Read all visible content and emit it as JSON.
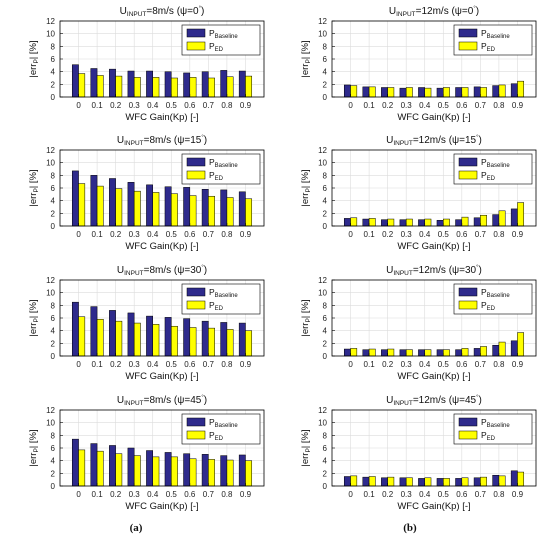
{
  "figure": {
    "caption_a": "(a)",
    "caption_b": "(b)"
  },
  "chart_data": [
    {
      "type": "bar",
      "title": {
        "prefix": "U",
        "sub": "INPUT",
        "mid": "=8m/s (ψ=0",
        "sup": "°",
        "suffix": ")"
      },
      "xlabel": "WFC Gain(Kp) [-]",
      "ylabel": {
        "main": "|err",
        "sub": "P",
        "end": "| [%]"
      },
      "categories": [
        "0",
        "0.1",
        "0.2",
        "0.3",
        "0.4",
        "0.5",
        "0.6",
        "0.7",
        "0.8",
        "0.9"
      ],
      "ylim": [
        0,
        12
      ],
      "yticks": [
        "0",
        "2",
        "4",
        "6",
        "8",
        "10",
        "12"
      ],
      "grid": true,
      "legend_position": "top-right",
      "series": [
        {
          "name": {
            "main": "P",
            "sub": "Baseline"
          },
          "color": "#2e2a8c",
          "values": [
            5.1,
            4.5,
            4.4,
            4.1,
            4.1,
            4.0,
            3.8,
            4.0,
            4.2,
            4.1
          ]
        },
        {
          "name": {
            "main": "P",
            "sub": "ED"
          },
          "color": "#ffff00",
          "values": [
            3.7,
            3.4,
            3.3,
            3.1,
            3.1,
            3.0,
            3.1,
            3.0,
            3.2,
            3.3
          ]
        }
      ]
    },
    {
      "type": "bar",
      "title": {
        "prefix": "U",
        "sub": "INPUT",
        "mid": "=12m/s (ψ=0",
        "sup": "°",
        "suffix": ")"
      },
      "xlabel": "WFC Gain(Kp) [-]",
      "ylabel": {
        "main": "|err",
        "sub": "P",
        "end": "| [%]"
      },
      "categories": [
        "0",
        "0.1",
        "0.2",
        "0.3",
        "0.4",
        "0.5",
        "0.6",
        "0.7",
        "0.8",
        "0.9"
      ],
      "ylim": [
        0,
        12
      ],
      "yticks": [
        "0",
        "2",
        "4",
        "6",
        "8",
        "10",
        "12"
      ],
      "grid": true,
      "legend_position": "top-right",
      "series": [
        {
          "name": {
            "main": "P",
            "sub": "Baseline"
          },
          "color": "#2e2a8c",
          "values": [
            1.9,
            1.6,
            1.5,
            1.4,
            1.5,
            1.4,
            1.5,
            1.6,
            1.8,
            2.1
          ]
        },
        {
          "name": {
            "main": "P",
            "sub": "ED"
          },
          "color": "#ffff00",
          "values": [
            1.8,
            1.6,
            1.5,
            1.5,
            1.4,
            1.5,
            1.5,
            1.5,
            1.9,
            2.5
          ]
        }
      ]
    },
    {
      "type": "bar",
      "title": {
        "prefix": "U",
        "sub": "INPUT",
        "mid": "=8m/s (ψ=15",
        "sup": "°",
        "suffix": ")"
      },
      "xlabel": "WFC Gain(Kp) [-]",
      "ylabel": {
        "main": "|err",
        "sub": "P",
        "end": "| [%]"
      },
      "categories": [
        "0",
        "0.1",
        "0.2",
        "0.3",
        "0.4",
        "0.5",
        "0.6",
        "0.7",
        "0.8",
        "0.9"
      ],
      "ylim": [
        0,
        12
      ],
      "yticks": [
        "0",
        "2",
        "4",
        "6",
        "8",
        "10",
        "12"
      ],
      "grid": true,
      "legend_position": "top-right",
      "series": [
        {
          "name": {
            "main": "P",
            "sub": "Baseline"
          },
          "color": "#2e2a8c",
          "values": [
            8.7,
            8.0,
            7.5,
            6.9,
            6.5,
            6.2,
            6.1,
            5.8,
            5.7,
            5.4
          ]
        },
        {
          "name": {
            "main": "P",
            "sub": "ED"
          },
          "color": "#ffff00",
          "values": [
            6.7,
            6.3,
            5.9,
            5.5,
            5.3,
            5.1,
            4.8,
            4.7,
            4.5,
            4.3
          ]
        }
      ]
    },
    {
      "type": "bar",
      "title": {
        "prefix": "U",
        "sub": "INPUT",
        "mid": "=12m/s (ψ=15",
        "sup": "°",
        "suffix": ")"
      },
      "xlabel": "WFC Gain(Kp) [-]",
      "ylabel": {
        "main": "|err",
        "sub": "P",
        "end": "| [%]"
      },
      "categories": [
        "0",
        "0.1",
        "0.2",
        "0.3",
        "0.4",
        "0.5",
        "0.6",
        "0.7",
        "0.8",
        "0.9"
      ],
      "ylim": [
        0,
        12
      ],
      "yticks": [
        "0",
        "2",
        "4",
        "6",
        "8",
        "10",
        "12"
      ],
      "grid": true,
      "legend_position": "top-right",
      "series": [
        {
          "name": {
            "main": "P",
            "sub": "Baseline"
          },
          "color": "#2e2a8c",
          "values": [
            1.2,
            1.1,
            1.0,
            1.0,
            1.0,
            0.9,
            1.0,
            1.3,
            1.8,
            2.7
          ]
        },
        {
          "name": {
            "main": "P",
            "sub": "ED"
          },
          "color": "#ffff00",
          "values": [
            1.3,
            1.2,
            1.1,
            1.1,
            1.1,
            1.1,
            1.4,
            1.7,
            2.4,
            3.7
          ]
        }
      ]
    },
    {
      "type": "bar",
      "title": {
        "prefix": "U",
        "sub": "INPUT",
        "mid": "=8m/s (ψ=30",
        "sup": "°",
        "suffix": ")"
      },
      "xlabel": "WFC Gain(Kp) [-]",
      "ylabel": {
        "main": "|err",
        "sub": "P",
        "end": "| [%]"
      },
      "categories": [
        "0",
        "0.1",
        "0.2",
        "0.3",
        "0.4",
        "0.5",
        "0.6",
        "0.7",
        "0.8",
        "0.9"
      ],
      "ylim": [
        0,
        12
      ],
      "yticks": [
        "0",
        "2",
        "4",
        "6",
        "8",
        "10",
        "12"
      ],
      "grid": true,
      "legend_position": "top-right",
      "series": [
        {
          "name": {
            "main": "P",
            "sub": "Baseline"
          },
          "color": "#2e2a8c",
          "values": [
            8.5,
            7.8,
            7.2,
            6.8,
            6.3,
            6.1,
            5.9,
            5.5,
            5.3,
            5.2
          ]
        },
        {
          "name": {
            "main": "P",
            "sub": "ED"
          },
          "color": "#ffff00",
          "values": [
            6.2,
            5.8,
            5.5,
            5.2,
            5.0,
            4.7,
            4.5,
            4.4,
            4.2,
            4.0
          ]
        }
      ]
    },
    {
      "type": "bar",
      "title": {
        "prefix": "U",
        "sub": "INPUT",
        "mid": "=12m/s (ψ=30",
        "sup": "°",
        "suffix": ")"
      },
      "xlabel": "WFC Gain(Kp) [-]",
      "ylabel": {
        "main": "|err",
        "sub": "P",
        "end": "| [%]"
      },
      "categories": [
        "0",
        "0.1",
        "0.2",
        "0.3",
        "0.4",
        "0.5",
        "0.6",
        "0.7",
        "0.8",
        "0.9"
      ],
      "ylim": [
        0,
        12
      ],
      "yticks": [
        "0",
        "2",
        "4",
        "6",
        "8",
        "10",
        "12"
      ],
      "grid": true,
      "legend_position": "top-right",
      "series": [
        {
          "name": {
            "main": "P",
            "sub": "Baseline"
          },
          "color": "#2e2a8c",
          "values": [
            1.1,
            1.0,
            1.0,
            1.0,
            1.0,
            1.0,
            1.0,
            1.2,
            1.7,
            2.4
          ]
        },
        {
          "name": {
            "main": "P",
            "sub": "ED"
          },
          "color": "#ffff00",
          "values": [
            1.2,
            1.1,
            1.1,
            1.0,
            1.0,
            1.0,
            1.2,
            1.5,
            2.2,
            3.7
          ]
        }
      ]
    },
    {
      "type": "bar",
      "title": {
        "prefix": "U",
        "sub": "INPUT",
        "mid": "=8m/s (ψ=45",
        "sup": "°",
        "suffix": ")"
      },
      "xlabel": "WFC Gain(Kp) [-]",
      "ylabel": {
        "main": "|err",
        "sub": "P",
        "end": "| [%]"
      },
      "categories": [
        "0",
        "0.1",
        "0.2",
        "0.3",
        "0.4",
        "0.5",
        "0.6",
        "0.7",
        "0.8",
        "0.9"
      ],
      "ylim": [
        0,
        12
      ],
      "yticks": [
        "0",
        "2",
        "4",
        "6",
        "8",
        "10",
        "12"
      ],
      "grid": true,
      "legend_position": "top-right",
      "series": [
        {
          "name": {
            "main": "P",
            "sub": "Baseline"
          },
          "color": "#2e2a8c",
          "values": [
            7.4,
            6.7,
            6.4,
            6.0,
            5.6,
            5.3,
            5.1,
            5.0,
            4.8,
            4.9
          ]
        },
        {
          "name": {
            "main": "P",
            "sub": "ED"
          },
          "color": "#ffff00",
          "values": [
            5.7,
            5.5,
            5.1,
            4.8,
            4.6,
            4.6,
            4.3,
            4.2,
            4.1,
            4.0
          ]
        }
      ]
    },
    {
      "type": "bar",
      "title": {
        "prefix": "U",
        "sub": "INPUT",
        "mid": "=12m/s (ψ=45",
        "sup": "°",
        "suffix": ")"
      },
      "xlabel": "WFC Gain(Kp) [-]",
      "ylabel": {
        "main": "|err",
        "sub": "P",
        "end": "| [%]"
      },
      "categories": [
        "0",
        "0.1",
        "0.2",
        "0.3",
        "0.4",
        "0.5",
        "0.6",
        "0.7",
        "0.8",
        "0.9"
      ],
      "ylim": [
        0,
        12
      ],
      "yticks": [
        "0",
        "2",
        "4",
        "6",
        "8",
        "10",
        "12"
      ],
      "grid": true,
      "legend_position": "top-right",
      "series": [
        {
          "name": {
            "main": "P",
            "sub": "Baseline"
          },
          "color": "#2e2a8c",
          "values": [
            1.5,
            1.4,
            1.3,
            1.3,
            1.2,
            1.2,
            1.2,
            1.3,
            1.7,
            2.4
          ]
        },
        {
          "name": {
            "main": "P",
            "sub": "ED"
          },
          "color": "#ffff00",
          "values": [
            1.6,
            1.5,
            1.4,
            1.3,
            1.3,
            1.2,
            1.3,
            1.4,
            1.6,
            2.2
          ]
        }
      ]
    }
  ]
}
